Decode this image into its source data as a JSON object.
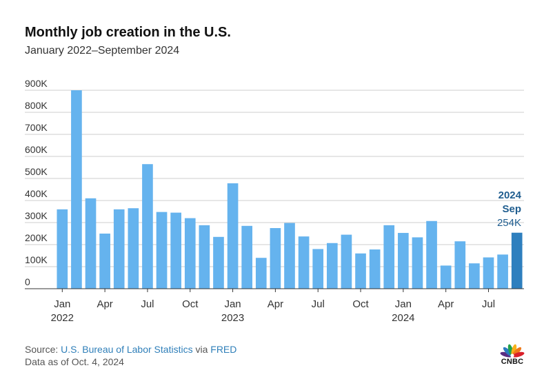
{
  "header": {
    "title": "Monthly job creation in the U.S.",
    "subtitle": "January 2022–September 2024"
  },
  "footer": {
    "source_prefix": "Source: ",
    "source_link1": "U.S. Bureau of Labor Statistics",
    "source_via": " via ",
    "source_link2": "FRED",
    "as_of": "Data as of Oct. 4, 2024",
    "logo_text": "CNBC"
  },
  "chart_data": {
    "type": "bar",
    "y_ticks": [
      "0",
      "100K",
      "200K",
      "300K",
      "400K",
      "500K",
      "600K",
      "700K",
      "800K",
      "900K"
    ],
    "ylim": [
      0,
      900
    ],
    "grid": true,
    "x_ticks": [
      {
        "index": 0,
        "label": "Jan",
        "year": "2022"
      },
      {
        "index": 3,
        "label": "Apr"
      },
      {
        "index": 6,
        "label": "Jul"
      },
      {
        "index": 9,
        "label": "Oct"
      },
      {
        "index": 12,
        "label": "Jan",
        "year": "2023"
      },
      {
        "index": 15,
        "label": "Apr"
      },
      {
        "index": 18,
        "label": "Jul"
      },
      {
        "index": 21,
        "label": "Oct"
      },
      {
        "index": 24,
        "label": "Jan",
        "year": "2024"
      },
      {
        "index": 27,
        "label": "Apr"
      },
      {
        "index": 30,
        "label": "Jul"
      }
    ],
    "categories": [
      "2022-01",
      "2022-02",
      "2022-03",
      "2022-04",
      "2022-05",
      "2022-06",
      "2022-07",
      "2022-08",
      "2022-09",
      "2022-10",
      "2022-11",
      "2022-12",
      "2023-01",
      "2023-02",
      "2023-03",
      "2023-04",
      "2023-05",
      "2023-06",
      "2023-07",
      "2023-08",
      "2023-09",
      "2023-10",
      "2023-11",
      "2023-12",
      "2024-01",
      "2024-02",
      "2024-03",
      "2024-04",
      "2024-05",
      "2024-06",
      "2024-07",
      "2024-08",
      "2024-09"
    ],
    "values": [
      360,
      900,
      410,
      250,
      360,
      365,
      565,
      348,
      345,
      320,
      288,
      235,
      478,
      285,
      140,
      275,
      298,
      237,
      180,
      207,
      245,
      160,
      178,
      288,
      253,
      233,
      307,
      105,
      215,
      115,
      142,
      155,
      254
    ],
    "colors": {
      "bar": "#65b3ee",
      "highlight": "#2e7fbe",
      "annotation": "#1f5d8f",
      "grid": "#cccccc",
      "axis": "#333333"
    },
    "highlight_index": 32,
    "annotation": {
      "year": "2024",
      "month": "Sep",
      "value": "254K"
    }
  }
}
